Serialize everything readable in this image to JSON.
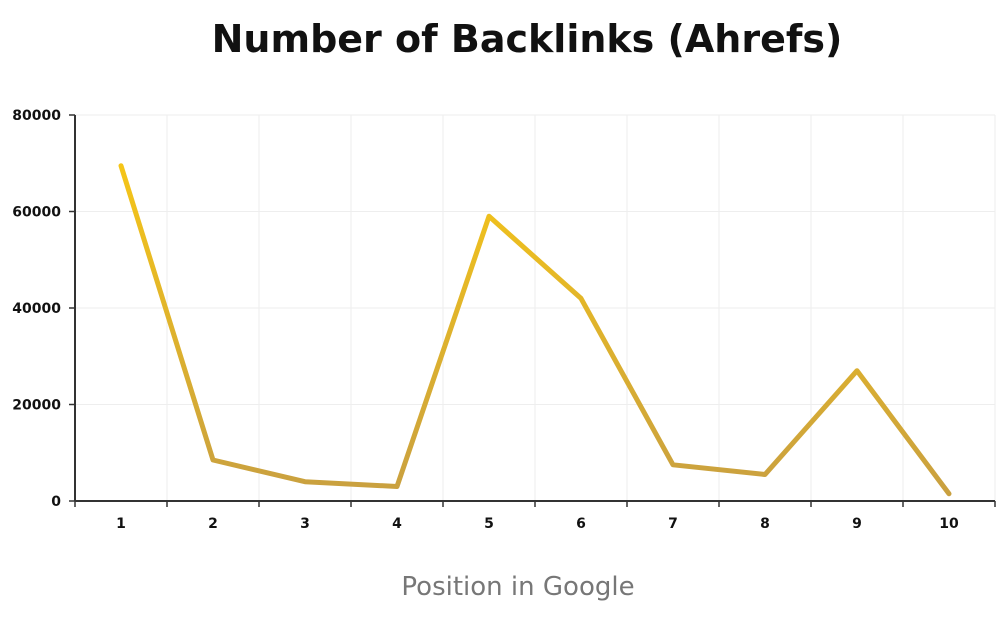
{
  "chart_data": {
    "type": "line",
    "title": "Number of Backlinks (Ahrefs)",
    "xlabel": "Position in Google",
    "ylabel": "",
    "categories": [
      "1",
      "2",
      "3",
      "4",
      "5",
      "6",
      "7",
      "8",
      "9",
      "10"
    ],
    "series": [
      {
        "values": [
          69500,
          8500,
          4000,
          3000,
          59000,
          42000,
          7500,
          5500,
          27000,
          1500
        ]
      }
    ],
    "ylim": [
      0,
      80000
    ],
    "yticks": [
      "0",
      "20000",
      "40000",
      "60000",
      "80000"
    ],
    "grid": true,
    "legend": "none",
    "colors": {
      "line_start": "#f5c518",
      "line_end": "#c9a040",
      "axis": "#333333",
      "grid": "#eeeeee"
    }
  }
}
